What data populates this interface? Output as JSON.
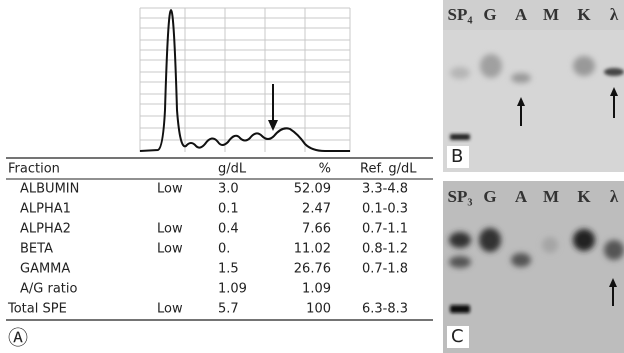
{
  "table": {
    "header": [
      "Fraction",
      "g/dL",
      "%",
      "Ref. g/dL"
    ],
    "rows": [
      {
        "fraction": "ALBUMIN",
        "flag": "Low",
        "gdl": "3.0",
        "pct": "52.09",
        "ref": "3.3-4.8"
      },
      {
        "fraction": "ALPHA1",
        "gdl": "0.1",
        "pct": "2.47",
        "ref": "0.1-0.3"
      },
      {
        "fraction": "ALPHA2",
        "flag": "Low",
        "gdl": "0.4",
        "pct": "7.66",
        "ref": "0.7-1.1"
      },
      {
        "fraction": "BETA",
        "flag": "Low",
        "gdl": "0.",
        "pct": "11.02",
        "ref": "0.8-1.2"
      },
      {
        "fraction": "GAMMA",
        "gdl": "1.5",
        "pct": "26.76",
        "ref": "0.7-1.8"
      },
      {
        "fraction": "A/G ratio",
        "gdl": "1.09",
        "pct": "1.09"
      },
      {
        "fraction": "Total SPE",
        "flag": "Low",
        "gdl": "5.7",
        "pct": "100",
        "ref": "6.3-8.3"
      }
    ]
  },
  "panel_a": "Ⓐ",
  "gel_b": {
    "lanes": [
      "SP₄",
      "G",
      "A",
      "M",
      "K",
      "λ"
    ],
    "label": "B"
  },
  "gel_c": {
    "lanes": [
      "SP₃",
      "G",
      "A",
      "M",
      "K",
      "λ"
    ],
    "label": "C"
  }
}
